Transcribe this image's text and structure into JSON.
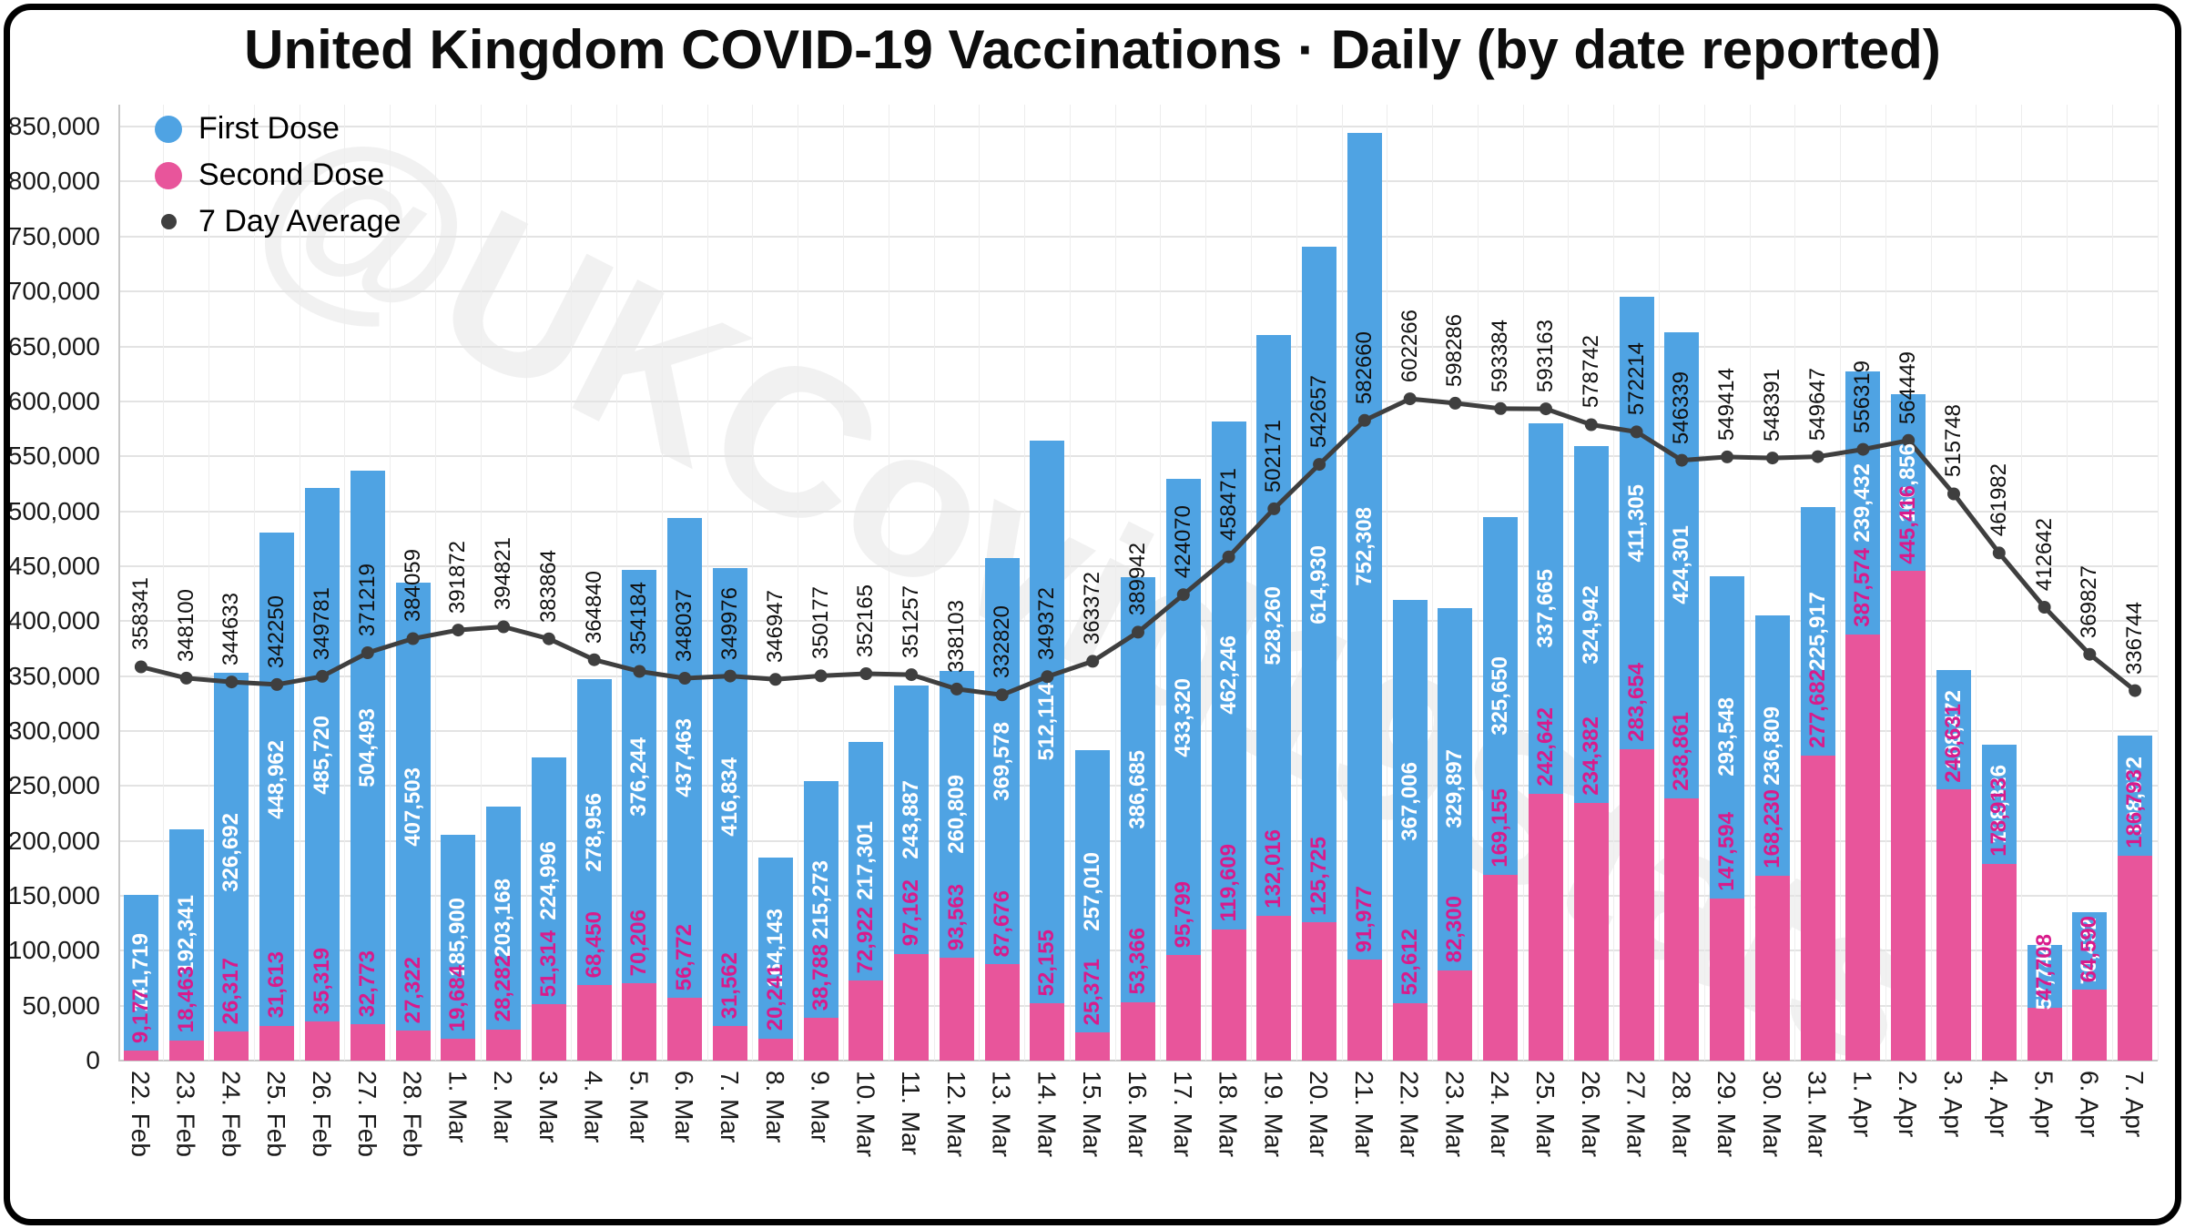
{
  "title": "United Kingdom COVID-19 Vaccinations · Daily (by date reported)",
  "watermark": "@UKCovid19Stats",
  "legend": {
    "first_dose": "First Dose",
    "second_dose": "Second Dose",
    "seven_day_avg": "7 Day Average"
  },
  "colors": {
    "first_dose": "#4FA3E3",
    "second_dose": "#E8559B",
    "first_label": "#FFFFFF",
    "second_label": "#D81B8B",
    "avg_line": "#3F3F3F",
    "avg_label": "#111111",
    "grid": "#E3E3E3"
  },
  "chart_data": {
    "type": "bar",
    "stacked": true,
    "title": "United Kingdom COVID-19 Vaccinations · Daily (by date reported)",
    "xlabel": "",
    "ylabel": "",
    "ylim": [
      0,
      870000
    ],
    "ytick_step": 50000,
    "ytick_max": 850000,
    "ytick_labels": [
      "0",
      "50,000",
      "100,000",
      "150,000",
      "200,000",
      "250,000",
      "300,000",
      "350,000",
      "400,000",
      "450,000",
      "500,000",
      "550,000",
      "600,000",
      "650,000",
      "700,000",
      "750,000",
      "800,000",
      "850,000"
    ],
    "grid": true,
    "legend_position": "top-left-inside",
    "value_labels": "rotated-90",
    "categories": [
      "22. Feb",
      "23. Feb",
      "24. Feb",
      "25. Feb",
      "26. Feb",
      "27. Feb",
      "28. Feb",
      "1. Mar",
      "2. Mar",
      "3. Mar",
      "4. Mar",
      "5. Mar",
      "6. Mar",
      "7. Mar",
      "8. Mar",
      "9. Mar",
      "10. Mar",
      "11. Mar",
      "12. Mar",
      "13. Mar",
      "14. Mar",
      "15. Mar",
      "16. Mar",
      "17. Mar",
      "18. Mar",
      "19. Mar",
      "20. Mar",
      "21. Mar",
      "22. Mar",
      "23. Mar",
      "24. Mar",
      "25. Mar",
      "26. Mar",
      "27. Mar",
      "28. Mar",
      "29. Mar",
      "30. Mar",
      "31. Mar",
      "1. Apr",
      "2. Apr",
      "3. Apr",
      "4. Apr",
      "5. Apr",
      "6. Apr",
      "7. Apr"
    ],
    "series": [
      {
        "name": "First Dose",
        "type": "bar",
        "stack_position": "top",
        "values": [
          141719,
          192341,
          326692,
          448962,
          485720,
          504493,
          407503,
          185900,
          203168,
          224996,
          278956,
          376244,
          437463,
          416834,
          164143,
          215273,
          217301,
          243887,
          260809,
          369578,
          512114,
          257010,
          386685,
          433320,
          462246,
          528260,
          614930,
          752308,
          367006,
          329897,
          325650,
          337665,
          324942,
          411305,
          424301,
          293548,
          236809,
          225917,
          239432,
          160856,
          108472,
          108326,
          57744,
          70432,
          108672
        ]
      },
      {
        "name": "Second Dose",
        "type": "bar",
        "stack_position": "bottom",
        "values": [
          9177,
          18463,
          26317,
          31613,
          35319,
          32773,
          27322,
          19684,
          28282,
          51314,
          68450,
          70206,
          56772,
          31562,
          20241,
          38788,
          72922,
          97162,
          93563,
          87676,
          52155,
          25371,
          53366,
          95799,
          119609,
          132016,
          125725,
          91977,
          52612,
          82300,
          169155,
          242642,
          234382,
          283654,
          238861,
          147594,
          168230,
          277682,
          387574,
          445416,
          246631,
          178913,
          47708,
          64590,
          186793
        ]
      },
      {
        "name": "7 Day Average",
        "type": "line",
        "values": [
          358341,
          348100,
          344633,
          342250,
          349781,
          371219,
          384059,
          391872,
          394821,
          383864,
          364840,
          354184,
          348037,
          349976,
          346947,
          350177,
          352165,
          351257,
          338103,
          332820,
          349372,
          363372,
          389942,
          424070,
          458471,
          502171,
          542657,
          582660,
          602266,
          598286,
          593384,
          593163,
          578742,
          572214,
          546339,
          549414,
          548391,
          549647,
          556319,
          564449,
          515748,
          461982,
          412642,
          369827,
          336744
        ]
      }
    ]
  }
}
